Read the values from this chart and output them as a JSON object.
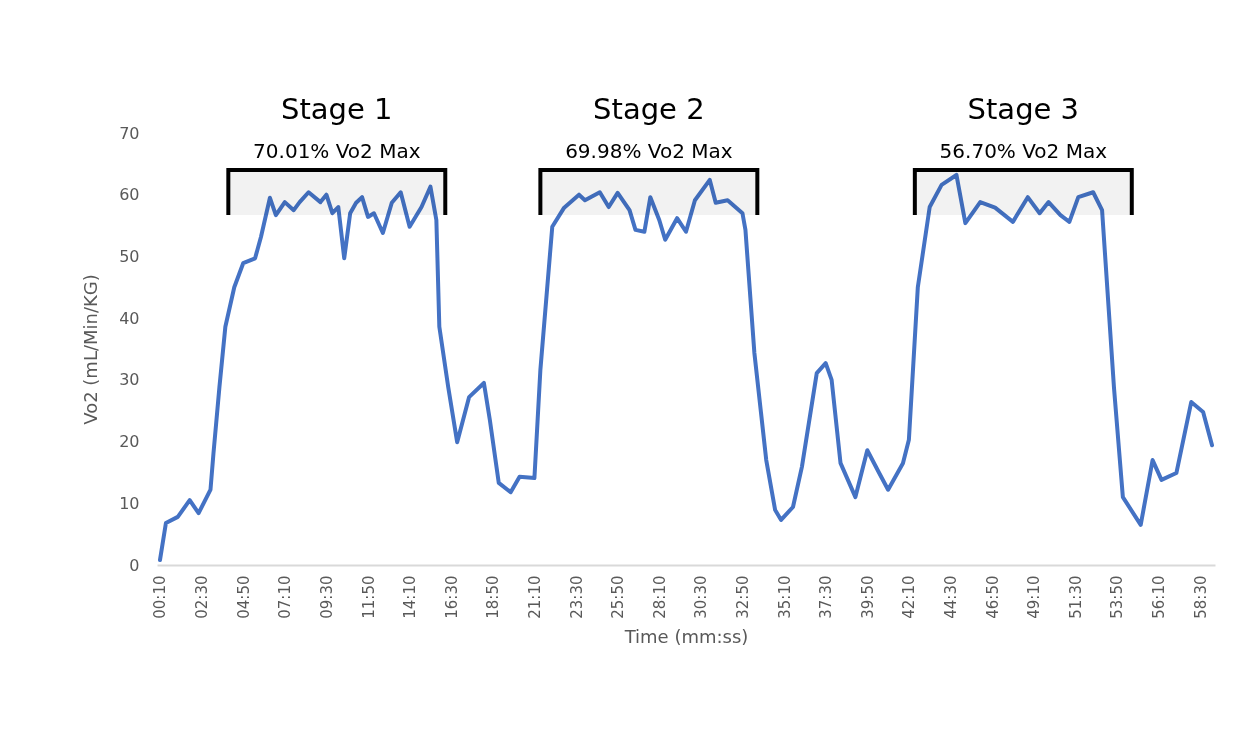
{
  "chart_data": {
    "type": "line",
    "xlabel": "Time (mm:ss)",
    "ylabel": "Vo2 (mL/Min/KG)",
    "x": [
      10,
      30,
      70,
      110,
      140,
      180,
      190,
      210,
      230,
      260,
      290,
      330,
      350,
      380,
      400,
      430,
      460,
      480,
      510,
      550,
      570,
      590,
      610,
      630,
      650,
      670,
      690,
      710,
      730,
      760,
      790,
      820,
      850,
      890,
      920,
      940,
      950,
      980,
      1010,
      1050,
      1100,
      1120,
      1150,
      1190,
      1220,
      1270,
      1290,
      1330,
      1370,
      1420,
      1440,
      1490,
      1520,
      1550,
      1590,
      1610,
      1640,
      1660,
      1690,
      1710,
      1750,
      1780,
      1810,
      1860,
      1880,
      1920,
      1970,
      1980,
      2010,
      2050,
      2080,
      2100,
      2140,
      2170,
      2220,
      2250,
      2270,
      2300,
      2350,
      2390,
      2430,
      2460,
      2510,
      2530,
      2560,
      2600,
      2640,
      2690,
      2720,
      2770,
      2820,
      2880,
      2930,
      2970,
      3000,
      3040,
      3070,
      3100,
      3150,
      3180,
      3220,
      3250,
      3310,
      3350,
      3380,
      3430,
      3480,
      3520,
      3550
    ],
    "series": [
      {
        "color": "#4472c4",
        "values": [
          0.8,
          6.8,
          7.8,
          10.5,
          8.4,
          12.2,
          18.1,
          28.8,
          38.6,
          45.0,
          48.9,
          49.7,
          53.2,
          59.5,
          56.7,
          58.8,
          57.5,
          58.8,
          60.4,
          58.8,
          60.0,
          57.0,
          58.0,
          49.7,
          57.0,
          58.7,
          59.6,
          56.4,
          57.0,
          53.8,
          58.7,
          60.4,
          54.8,
          58.0,
          61.3,
          55.9,
          38.6,
          28.8,
          19.9,
          27.2,
          29.5,
          23.5,
          13.3,
          11.8,
          14.3,
          14.1,
          31.6,
          54.8,
          57.9,
          60.0,
          59.1,
          60.4,
          58.0,
          60.3,
          57.5,
          54.3,
          54.0,
          59.6,
          55.9,
          52.7,
          56.2,
          54.0,
          59.1,
          62.4,
          58.7,
          59.1,
          57.0,
          54.3,
          34.4,
          17.0,
          8.9,
          7.3,
          9.4,
          15.9,
          31.1,
          32.7,
          30.0,
          16.5,
          11.0,
          18.6,
          14.9,
          12.2,
          16.5,
          20.3,
          45.0,
          58.0,
          61.6,
          63.2,
          55.4,
          58.8,
          57.9,
          55.6,
          59.6,
          57.0,
          58.8,
          56.7,
          55.6,
          59.6,
          60.4,
          57.5,
          28.8,
          11.0,
          6.5,
          17.0,
          13.8,
          14.9,
          26.4,
          24.8,
          19.4
        ]
      }
    ],
    "xlim": [
      0,
      3560
    ],
    "xticks": [
      {
        "value": 10,
        "label": "00:10"
      },
      {
        "value": 150,
        "label": "02:30"
      },
      {
        "value": 290,
        "label": "04:50"
      },
      {
        "value": 430,
        "label": "07:10"
      },
      {
        "value": 570,
        "label": "09:30"
      },
      {
        "value": 710,
        "label": "11:50"
      },
      {
        "value": 850,
        "label": "14:10"
      },
      {
        "value": 990,
        "label": "16:30"
      },
      {
        "value": 1130,
        "label": "18:50"
      },
      {
        "value": 1270,
        "label": "21:10"
      },
      {
        "value": 1410,
        "label": "23:30"
      },
      {
        "value": 1550,
        "label": "25:50"
      },
      {
        "value": 1690,
        "label": "28:10"
      },
      {
        "value": 1830,
        "label": "30:30"
      },
      {
        "value": 1970,
        "label": "32:50"
      },
      {
        "value": 2110,
        "label": "35:10"
      },
      {
        "value": 2250,
        "label": "37:30"
      },
      {
        "value": 2390,
        "label": "39:50"
      },
      {
        "value": 2530,
        "label": "42:10"
      },
      {
        "value": 2670,
        "label": "44:30"
      },
      {
        "value": 2810,
        "label": "46:50"
      },
      {
        "value": 2950,
        "label": "49:10"
      },
      {
        "value": 3090,
        "label": "51:30"
      },
      {
        "value": 3230,
        "label": "53:50"
      },
      {
        "value": 3370,
        "label": "56:10"
      },
      {
        "value": 3510,
        "label": "58:30"
      }
    ],
    "ylim": [
      0,
      70
    ],
    "yticks": [
      0,
      10,
      20,
      30,
      40,
      50,
      60,
      70
    ],
    "grid": false,
    "marker": "none",
    "line_style": "solid",
    "bands": [
      {
        "axis": "x",
        "from": 240,
        "to": 970,
        "label": "70.01% Vo2 Max",
        "color": "#000000"
      },
      {
        "axis": "x",
        "from": 1290,
        "to": 2020,
        "label": "69.98% Vo2 Max",
        "color": "#000000"
      },
      {
        "axis": "x",
        "from": 2550,
        "to": 3280,
        "label": "56.70% Vo2 Max",
        "color": "#000000"
      }
    ],
    "annotations": [
      "Stage 1",
      "Stage 2",
      "Stage 3"
    ]
  }
}
